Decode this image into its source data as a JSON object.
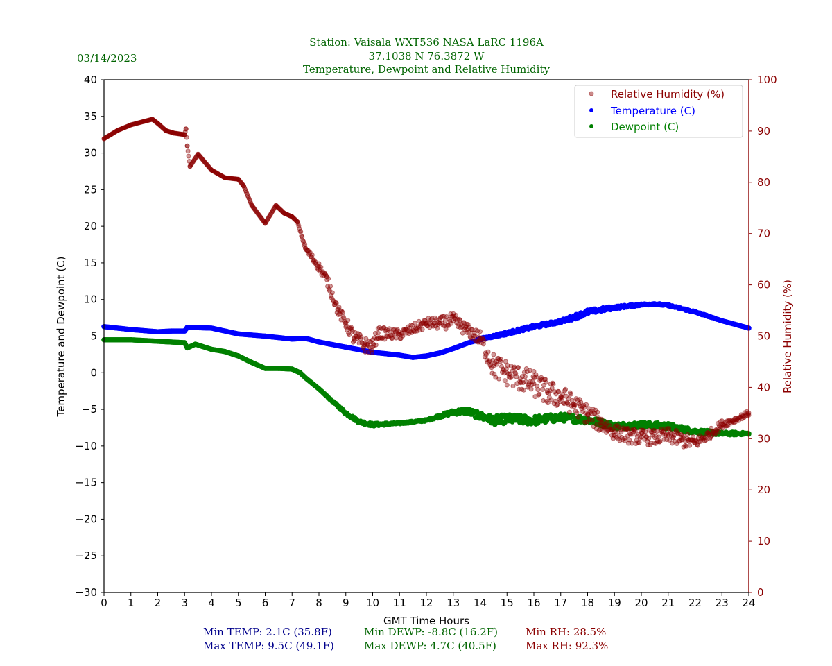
{
  "chart_data": {
    "type": "scatter",
    "title_lines": [
      "Station:  Vaisala WXT536  NASA LaRC 1196A",
      "37.1038 N 76.3872 W",
      "Temperature, Dewpoint and Relative Humidity"
    ],
    "date": "03/14/2023",
    "xlabel": "GMT Time Hours",
    "ylabel": "Temperature and Dewpoint (C)",
    "y2label": "Relative Humidity (%)",
    "xlim": [
      0,
      24
    ],
    "ylim": [
      -30,
      40
    ],
    "y2lim": [
      0,
      100
    ],
    "xticks": [
      "0",
      "1",
      "2",
      "3",
      "4",
      "5",
      "6",
      "7",
      "8",
      "9",
      "10",
      "11",
      "12",
      "13",
      "14",
      "15",
      "16",
      "17",
      "18",
      "19",
      "20",
      "21",
      "22",
      "23",
      "24"
    ],
    "yticks": [
      "40",
      "35",
      "30",
      "25",
      "20",
      "15",
      "10",
      "5",
      "0",
      "−10",
      "−15",
      "−20",
      "−25",
      "−30"
    ],
    "yticks_values": [
      40,
      35,
      30,
      25,
      20,
      15,
      10,
      5,
      0,
      -10,
      -15,
      -20,
      -25,
      -30
    ],
    "y2ticks": [
      "100",
      "90",
      "80",
      "70",
      "60",
      "50",
      "40",
      "30",
      "20",
      "10",
      "0"
    ],
    "y2ticks_values": [
      100,
      90,
      80,
      70,
      60,
      50,
      40,
      30,
      20,
      10,
      0
    ],
    "grid": false,
    "legend_position": "top-right",
    "legend": [
      {
        "label": "Relative Humidity (%)",
        "color": "#8b0000",
        "alpha": 0.45
      },
      {
        "label": "Temperature (C)",
        "color": "#0000ff",
        "alpha": 1
      },
      {
        "label": "Dewpoint (C)",
        "color": "#008000",
        "alpha": 1
      }
    ],
    "series": [
      {
        "name": "Relative Humidity (%)",
        "axis": "right",
        "color": "#8b0000",
        "x": [
          0,
          0.5,
          1,
          1.5,
          1.8,
          2,
          2.3,
          2.6,
          3.0,
          3.05,
          3.1,
          3.2,
          3.5,
          4,
          4.5,
          5,
          5.2,
          5.5,
          6,
          6.4,
          6.7,
          7,
          7.2,
          7.5,
          8,
          8.3,
          8.7,
          9,
          9.3,
          9.7,
          10,
          10.2,
          11,
          12,
          12.5,
          13,
          13.5,
          14,
          14.5,
          15,
          15.5,
          16,
          16.5,
          17,
          17.5,
          18,
          18.5,
          19,
          19.5,
          20,
          20.5,
          21,
          21.5,
          22,
          22.5,
          23,
          23.5,
          24
        ],
        "y": [
          88.5,
          90.1,
          91.2,
          91.9,
          92.3,
          91.5,
          90.1,
          89.6,
          89.3,
          90.4,
          87.1,
          83.1,
          85.5,
          82.4,
          80.9,
          80.6,
          79.3,
          75.5,
          72.0,
          75.5,
          74.0,
          73.3,
          72.3,
          67.1,
          63.5,
          61.0,
          55.1,
          52.6,
          49.7,
          48.3,
          47.9,
          50.6,
          50.3,
          52.5,
          52.5,
          53.0,
          51.3,
          49.5,
          44.2,
          42.8,
          41.7,
          40.7,
          39.0,
          38.2,
          36.6,
          34.8,
          33.0,
          31.3,
          30.6,
          30.3,
          30.2,
          30.6,
          29.8,
          29.2,
          30.7,
          32.8,
          33.7,
          35.0
        ],
        "noise": [
          0,
          0,
          0,
          0,
          0,
          0,
          0,
          0,
          0,
          0,
          0,
          0,
          0,
          0,
          0,
          0,
          0,
          0,
          0,
          0,
          0,
          0,
          0,
          0.5,
          0.8,
          1,
          1,
          1.2,
          1.5,
          1.5,
          1.5,
          1.2,
          1,
          1,
          1.2,
          1.5,
          1.2,
          1.5,
          2.5,
          2.5,
          2.5,
          2.5,
          2.5,
          2.2,
          2,
          2,
          1.8,
          1.5,
          1.5,
          1.5,
          1.5,
          1.5,
          1.5,
          1.2,
          1,
          0.8,
          0.5,
          0.5
        ]
      },
      {
        "name": "Temperature (C)",
        "axis": "left",
        "color": "#0000ff",
        "x": [
          0,
          1,
          2,
          2.5,
          3.0,
          3.1,
          4,
          5,
          6,
          7,
          7.5,
          8,
          9,
          10,
          11,
          11.5,
          12,
          12.5,
          13,
          13.5,
          14,
          15,
          16,
          17,
          17.5,
          18,
          19,
          20,
          20.5,
          21,
          22,
          23,
          24
        ],
        "y": [
          6.3,
          5.9,
          5.6,
          5.7,
          5.7,
          6.2,
          6.1,
          5.3,
          5.0,
          4.6,
          4.7,
          4.2,
          3.5,
          2.8,
          2.4,
          2.1,
          2.3,
          2.7,
          3.3,
          4.0,
          4.6,
          5.4,
          6.3,
          7.0,
          7.6,
          8.3,
          8.9,
          9.3,
          9.4,
          9.2,
          8.3,
          7.1,
          6.1
        ],
        "noise": [
          0,
          0,
          0,
          0,
          0,
          0,
          0,
          0,
          0,
          0,
          0,
          0,
          0,
          0,
          0,
          0,
          0,
          0,
          0,
          0,
          0.1,
          0.2,
          0.2,
          0.2,
          0.3,
          0.3,
          0.2,
          0.1,
          0.1,
          0.1,
          0.1,
          0,
          0
        ]
      },
      {
        "name": "Dewpoint (C)",
        "axis": "left",
        "color": "#008000",
        "x": [
          0,
          1,
          2,
          3,
          3.1,
          3.4,
          4,
          4.5,
          5,
          5.5,
          6,
          6.5,
          7,
          7.3,
          7.5,
          8,
          8.5,
          9,
          9.5,
          10,
          11,
          12,
          12.5,
          13,
          13.5,
          14,
          14.5,
          15,
          16,
          17,
          18,
          19,
          20,
          21,
          22,
          23,
          23.5,
          24
        ],
        "y": [
          4.5,
          4.5,
          4.3,
          4.1,
          3.4,
          3.9,
          3.2,
          2.9,
          2.3,
          1.4,
          0.6,
          0.6,
          0.5,
          0.0,
          -0.7,
          -2.2,
          -3.9,
          -5.5,
          -6.7,
          -7.1,
          -6.9,
          -6.5,
          -5.9,
          -5.4,
          -5.2,
          -5.9,
          -6.5,
          -6.3,
          -6.5,
          -6.1,
          -6.4,
          -7.3,
          -7.1,
          -7.3,
          -8.0,
          -8.3,
          -8.3,
          -8.3
        ],
        "noise": [
          0,
          0,
          0,
          0,
          0,
          0,
          0,
          0,
          0,
          0,
          0,
          0,
          0,
          0,
          0,
          0,
          0.1,
          0.2,
          0.2,
          0.2,
          0.1,
          0.1,
          0.2,
          0.3,
          0.4,
          0.5,
          0.6,
          0.6,
          0.6,
          0.5,
          0.5,
          0.4,
          0.4,
          0.4,
          0.3,
          0.2,
          0.2,
          0.1
        ]
      }
    ],
    "stats": {
      "min_temp": "Min TEMP: 2.1C (35.8F)",
      "max_temp": "Max TEMP: 9.5C (49.1F)",
      "min_dewp": "Min DEWP: -8.8C (16.2F)",
      "max_dewp": "Max DEWP: 4.7C (40.5F)",
      "min_rh": "Min RH: 28.5%",
      "max_rh": "Max RH: 92.3%"
    },
    "colors": {
      "title": "#006400",
      "rh": "#8b0000",
      "temp": "#0000ff",
      "dewp": "#008000",
      "temp_stats": "#00008b",
      "dewp_stats": "#006400"
    }
  }
}
